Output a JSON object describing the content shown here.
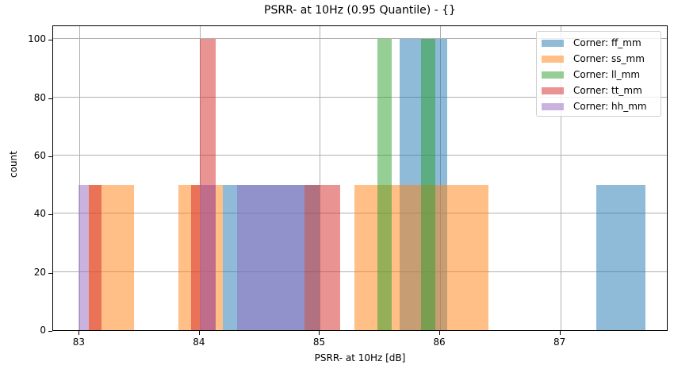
{
  "chart_data": {
    "type": "bar",
    "title": "PSRR- at 10Hz (0.95 Quantile) - {}",
    "xlabel": "PSRR- at 10Hz [dB]",
    "ylabel": "count",
    "xlim": [
      82.78,
      87.9
    ],
    "ylim": [
      0,
      105
    ],
    "xticks": [
      83,
      84,
      85,
      86,
      87
    ],
    "yticks": [
      0,
      20,
      40,
      60,
      80,
      100
    ],
    "grid": true,
    "legend_position": "upper right",
    "series": [
      {
        "name": "Corner: ff_mm",
        "color": "#1f77b4",
        "bins": [
          [
            84.19,
            85.0,
            50
          ],
          [
            85.66,
            85.84,
            100
          ],
          [
            85.84,
            86.06,
            100
          ],
          [
            87.3,
            87.71,
            50
          ]
        ]
      },
      {
        "name": "Corner: ss_mm",
        "color": "#ff7f0e",
        "bins": [
          [
            83.08,
            83.45,
            50
          ],
          [
            83.82,
            84.19,
            50
          ],
          [
            85.29,
            86.4,
            50
          ]
        ]
      },
      {
        "name": "Corner: ll_mm",
        "color": "#2ca02c",
        "bins": [
          [
            85.48,
            85.6,
            100
          ],
          [
            85.84,
            85.96,
            100
          ]
        ]
      },
      {
        "name": "Corner: tt_mm",
        "color": "#d62728",
        "bins": [
          [
            83.08,
            83.18,
            50
          ],
          [
            83.93,
            84.0,
            50
          ],
          [
            84.0,
            84.13,
            100
          ],
          [
            84.87,
            85.17,
            50
          ]
        ]
      },
      {
        "name": "Corner: hh_mm",
        "color": "#9467bd",
        "bins": [
          [
            82.99,
            83.08,
            50
          ],
          [
            84.0,
            84.13,
            50
          ],
          [
            84.31,
            84.87,
            50
          ]
        ]
      }
    ]
  },
  "title": "PSRR- at 10Hz (0.95 Quantile) - {}",
  "xlabel": "PSRR- at 10Hz [dB]",
  "ylabel": "count",
  "xticks": [
    "83",
    "84",
    "85",
    "86",
    "87"
  ],
  "yticks": [
    "0",
    "20",
    "40",
    "60",
    "80",
    "100"
  ],
  "legend": [
    {
      "label": "Corner: ff_mm",
      "color": "#1f77b4"
    },
    {
      "label": "Corner: ss_mm",
      "color": "#ff7f0e"
    },
    {
      "label": "Corner: ll_mm",
      "color": "#2ca02c"
    },
    {
      "label": "Corner: tt_mm",
      "color": "#d62728"
    },
    {
      "label": "Corner: hh_mm",
      "color": "#9467bd"
    }
  ]
}
